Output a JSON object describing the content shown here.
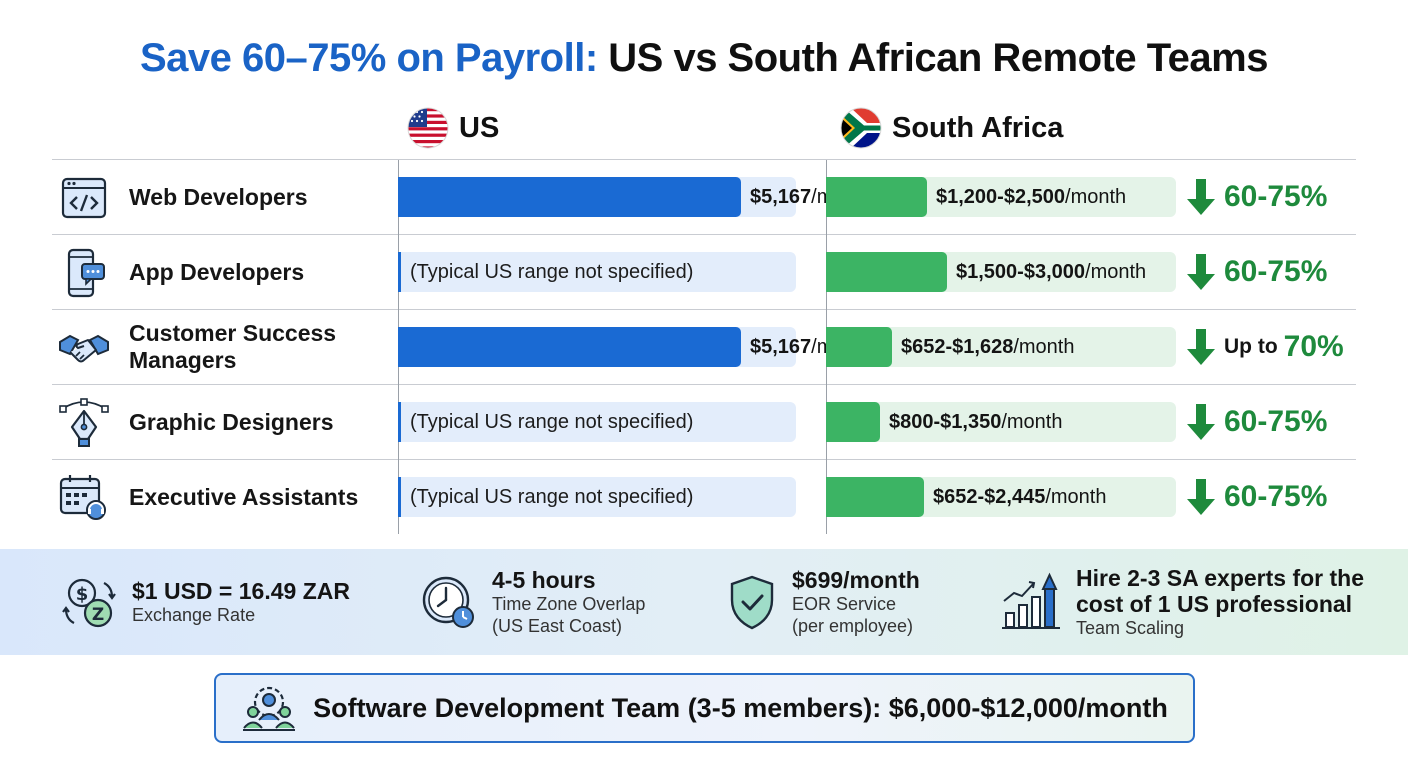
{
  "title": {
    "highlight": "Save 60–75% on Payroll:",
    "rest": "US vs South African Remote Teams"
  },
  "columns": {
    "us": "US",
    "sa": "South Africa"
  },
  "icons": {
    "us_flag": "us-flag-icon",
    "sa_flag": "south-africa-flag-icon",
    "down_arrow": "down-arrow-icon",
    "rows": [
      "code-window-icon",
      "mobile-chat-icon",
      "handshake-icon",
      "pen-tool-icon",
      "calendar-headset-icon"
    ],
    "stats": [
      "currency-exchange-icon",
      "clock-icon",
      "shield-check-icon",
      "growth-chart-icon"
    ],
    "team": "team-gear-icon"
  },
  "colors": {
    "accent_blue": "#1a63c6",
    "us_bar": "#1a6ad3",
    "sa_bar": "#3cb464",
    "saving_green": "#1e8a3c"
  },
  "chart_data": {
    "type": "bar",
    "unit_suffix": "/month",
    "rows": [
      {
        "role": "Web Developers",
        "us_value": 5167,
        "us_text": "$5,167",
        "sa_range": [
          1200,
          2500
        ],
        "sa_text": "$1,200-$2,500",
        "saving_prefix": "",
        "saving": "60-75%"
      },
      {
        "role": "App Developers",
        "us_value": null,
        "us_text": "(Typical US range not specified)",
        "sa_range": [
          1500,
          3000
        ],
        "sa_text": "$1,500-$3,000",
        "saving_prefix": "",
        "saving": "60-75%"
      },
      {
        "role": "Customer Success Managers",
        "us_value": 5167,
        "us_text": "$5,167",
        "sa_range": [
          652,
          1628
        ],
        "sa_text": "$652-$1,628",
        "saving_prefix": "Up to",
        "saving": "70%"
      },
      {
        "role": "Graphic Designers",
        "us_value": null,
        "us_text": "(Typical US range not specified)",
        "sa_range": [
          800,
          1350
        ],
        "sa_text": "$800-$1,350",
        "saving_prefix": "",
        "saving": "60-75%"
      },
      {
        "role": "Executive Assistants",
        "us_value": null,
        "us_text": "(Typical US range not specified)",
        "sa_range": [
          652,
          2445
        ],
        "sa_text": "$652-$2,445",
        "saving_prefix": "",
        "saving": "60-75%"
      }
    ]
  },
  "stats": [
    {
      "big": "$1 USD = 16.49 ZAR",
      "small1": "Exchange Rate",
      "small2": ""
    },
    {
      "big": "4-5 hours",
      "small1": "Time Zone Overlap",
      "small2": "(US East Coast)"
    },
    {
      "big": "$699/month",
      "small1": "EOR Service",
      "small2": "(per employee)"
    },
    {
      "big": "Hire 2-3 SA experts for the",
      "big2": "cost of 1 US professional",
      "small1": "Team Scaling"
    }
  ],
  "callout": "Software Development Team (3-5 members): $6,000-$12,000/month"
}
